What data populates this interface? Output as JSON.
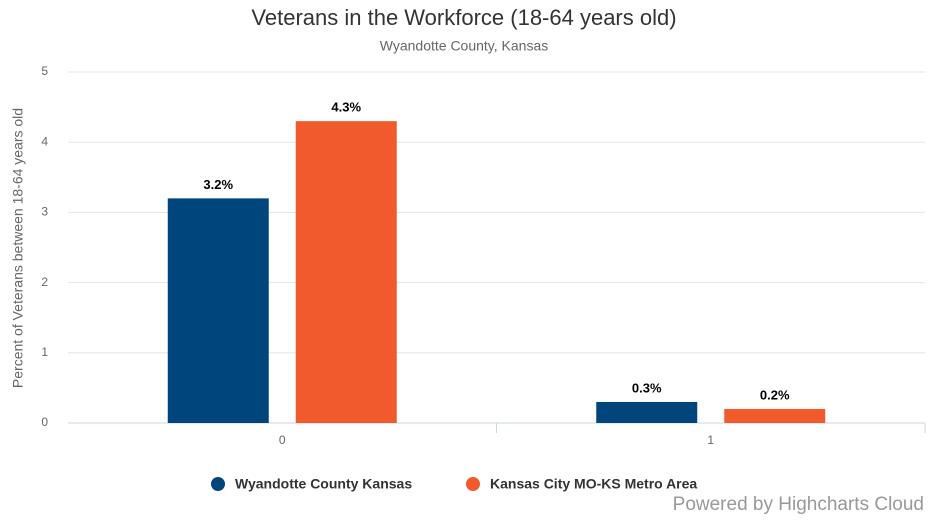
{
  "chart_data": {
    "type": "bar",
    "title": "Veterans in the Workforce (18-64 years old)",
    "subtitle": "Wyandotte County, Kansas",
    "y_axis_label": "Percent of Veterans between 18-64 years old",
    "categories": [
      "0",
      "1"
    ],
    "series": [
      {
        "name": "Wyandotte County Kansas",
        "color": "#00457c",
        "values": [
          3.2,
          0.3
        ],
        "value_labels": [
          "3.2%",
          "0.3%"
        ]
      },
      {
        "name": "Kansas City MO-KS Metro Area",
        "color": "#f15a2c",
        "values": [
          4.3,
          0.2
        ],
        "value_labels": [
          "4.3%",
          "0.2%"
        ]
      }
    ],
    "ylim": [
      0,
      5
    ],
    "yticks": [
      0,
      1,
      2,
      3,
      4,
      5
    ],
    "grid": true,
    "legend": "bottom",
    "credits": "Powered by Highcharts Cloud"
  }
}
